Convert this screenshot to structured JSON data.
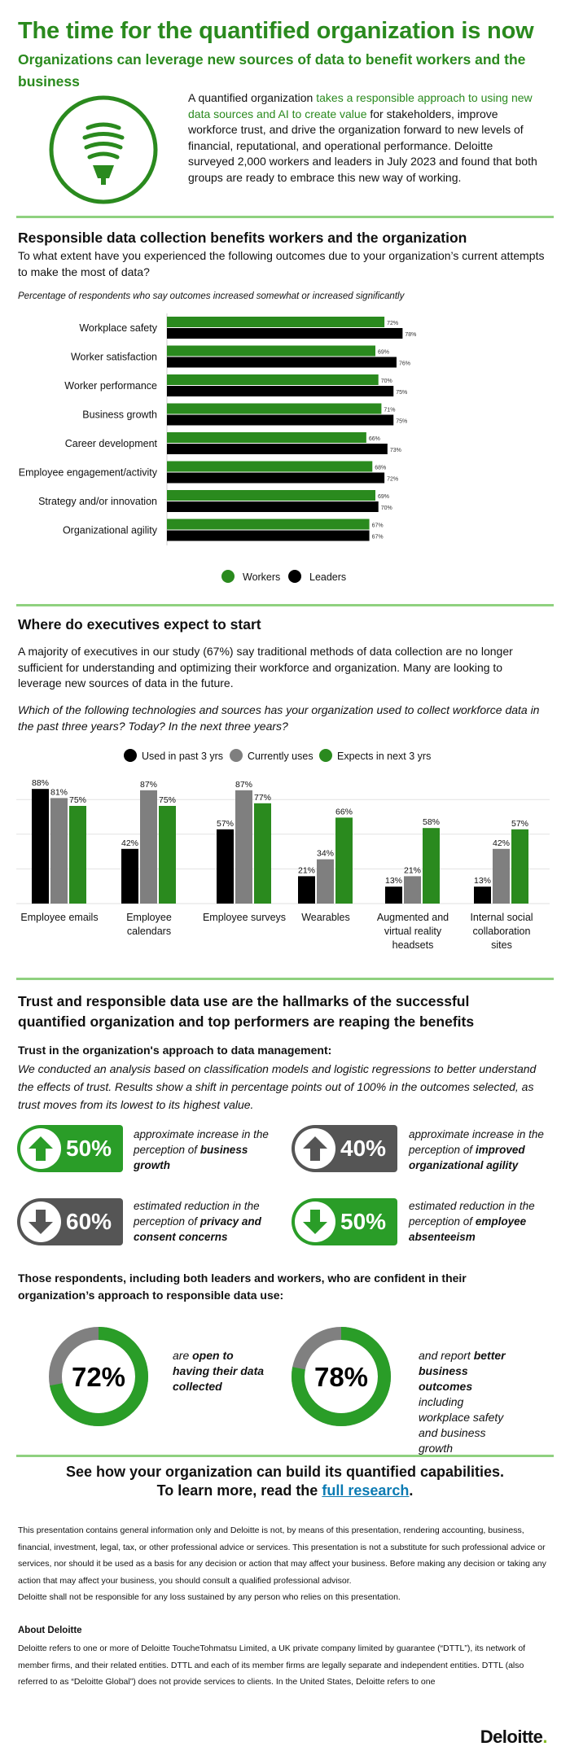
{
  "header": {
    "title": "The time for the quantified organization is now",
    "subtitle": "Organizations can leverage new sources of data to benefit workers and the business",
    "intro_pre": "A quantified organization ",
    "intro_highlight": "takes a responsible approach to using new data sources and AI to create value",
    "intro_post": " for stakeholders, improve workforce trust, and drive the organization forward to new levels of financial, reputational, and operational performance. Deloitte surveyed 2,000 workers and leaders in July 2023 and found that both groups are ready to embrace this new way of working."
  },
  "section1": {
    "heading": "Responsible data collection benefits workers and the organization",
    "question": "To what extent have you experienced the following outcomes due to your organization’s current attempts to make the most of data?",
    "note": "Percentage of respondents who say outcomes increased somewhat or increased significantly",
    "legend_workers": "Workers",
    "legend_leaders": "Leaders"
  },
  "section2": {
    "heading": "Where do executives expect to start",
    "body": "A majority of executives in our study (67%) say traditional methods of data collection are no longer sufficient for understanding and optimizing their workforce and organization. Many are looking to leverage new sources of data in the future.",
    "question": "Which of the following technologies and sources has your organization used to collect workforce data in the past three years? Today? In the next three years?"
  },
  "chart_data": [
    {
      "type": "bar",
      "orientation": "horizontal",
      "categories": [
        "Workplace safety",
        "Worker satisfaction",
        "Worker performance",
        "Business growth",
        "Career development",
        "Employee engagement/activity",
        "Strategy and/or innovation",
        "Organizational agility"
      ],
      "series": [
        {
          "name": "Workers",
          "color": "#2a8a1e",
          "values": [
            72,
            69,
            70,
            71,
            66,
            68,
            69,
            67
          ]
        },
        {
          "name": "Leaders",
          "color": "#000000",
          "values": [
            78,
            76,
            75,
            75,
            73,
            72,
            70,
            67
          ]
        }
      ],
      "value_suffix": "%",
      "legend": "bottom"
    },
    {
      "type": "bar",
      "orientation": "vertical",
      "categories": [
        "Employee emails",
        "Employee calendars",
        "Employee surveys",
        "Wearables",
        "Augmented and virtual reality headsets",
        "Internal social collaboration sites"
      ],
      "series": [
        {
          "name": "Used in past 3 yrs",
          "color": "#000000",
          "values": [
            88,
            42,
            57,
            21,
            13,
            13
          ]
        },
        {
          "name": "Currently uses",
          "color": "#7f7f7f",
          "values": [
            81,
            87,
            87,
            34,
            21,
            42
          ]
        },
        {
          "name": "Expects in next 3 yrs",
          "color": "#2a8a1e",
          "values": [
            75,
            75,
            77,
            66,
            58,
            57
          ]
        }
      ],
      "value_suffix": "%",
      "legend": "top",
      "ylim": [
        0,
        90
      ]
    }
  ],
  "section3": {
    "heading": "Trust and responsible data use are the hallmarks of the successful quantified organization and top performers are reaping the benefits",
    "subheading": "Trust in the organization's approach to data management:",
    "body": "We conducted an analysis based on classification models and logistic regressions to better understand the effects of trust. Results show a shift in percentage points out of 100% in the outcomes selected, as trust moves from its lowest to its highest value.",
    "stats": [
      {
        "value": "50%",
        "direction": "up",
        "color": "#2a9d28",
        "text": "approximate increase in the perception of ",
        "bold": "business growth"
      },
      {
        "value": "40%",
        "direction": "up",
        "color": "#555555",
        "text": "approximate increase in the perception of ",
        "bold": "improved organizational agility"
      },
      {
        "value": "60%",
        "direction": "down",
        "color": "#555555",
        "text": "estimated reduction in the perception of ",
        "bold": "privacy and consent concerns"
      },
      {
        "value": "50%",
        "direction": "down",
        "color": "#2a9d28",
        "text": "estimated reduction in the perception of ",
        "bold": "employee absenteeism"
      }
    ],
    "confident_heading": "Those respondents, including both leaders and workers, who are confident in their organization’s approach to responsible data use:",
    "donuts": [
      {
        "label": "72%",
        "value": 72,
        "pre": "are ",
        "bold": "open to having their data collected",
        "post": ""
      },
      {
        "label": "78%",
        "value": 78,
        "pre": "and report ",
        "bold": "better business outcomes",
        "post": " including workplace safety and business growth"
      }
    ]
  },
  "cta": {
    "line1": "See how your organization can build its quantified capabilities.",
    "line2_pre": "To learn more, read the ",
    "link": "full research",
    "line2_post": "."
  },
  "legal": {
    "disclaimer": "This presentation contains general information only and Deloitte is not, by means of this presentation, rendering accounting, business, financial, investment, legal, tax, or other professional advice or services. This presentation is not a substitute for such professional advice or services, nor should it be used as a basis for any decision or action that may affect your business. Before making any decision or taking any action that may affect your business, you should consult a qualified professional advisor.",
    "liability": "Deloitte shall not be responsible for any loss sustained by any person who relies on this presentation.",
    "about_heading": "About Deloitte",
    "about": "Deloitte refers to one or more of Deloitte ToucheTohmatsu Limited, a UK private company limited by guarantee (“DTTL”), its network of member firms, and their related entities. DTTL and each of its member firms are legally separate and independent entities. DTTL (also referred to as “Deloitte Global”) does not provide services to clients. In the United States, Deloitte refers to one"
  },
  "logo": {
    "name": "Deloitte",
    "dot": "."
  }
}
